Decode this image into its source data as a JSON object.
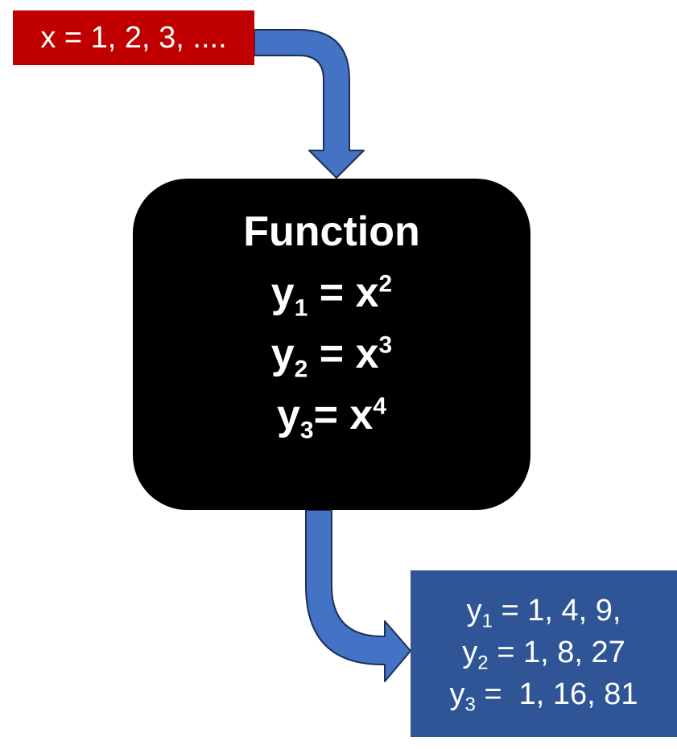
{
  "input": {
    "text": "x = 1, 2, 3, ...."
  },
  "function": {
    "title": "Function",
    "equations": [
      {
        "lhs": "y",
        "sub": "1",
        "op": " = ",
        "rhs": "x",
        "sup": "2"
      },
      {
        "lhs": "y",
        "sub": "2",
        "op": " = ",
        "rhs": "x",
        "sup": "3"
      },
      {
        "lhs": "y",
        "sub": "3",
        "op": "= ",
        "rhs": "x",
        "sup": "4"
      }
    ]
  },
  "output": {
    "lines": [
      {
        "lhs": "y",
        "sub": "1",
        "rest": " = 1, 4, 9,"
      },
      {
        "lhs": "y",
        "sub": "2",
        "rest": " = 1, 8, 27"
      },
      {
        "lhs": "y",
        "sub": "3",
        "rest": " =  1, 16, 81"
      }
    ]
  },
  "colors": {
    "input_box": "#c00000",
    "function_box": "#000000",
    "output_box": "#2f5597",
    "arrow_fill": "#4472c4",
    "arrow_stroke": "#1f2f56"
  }
}
